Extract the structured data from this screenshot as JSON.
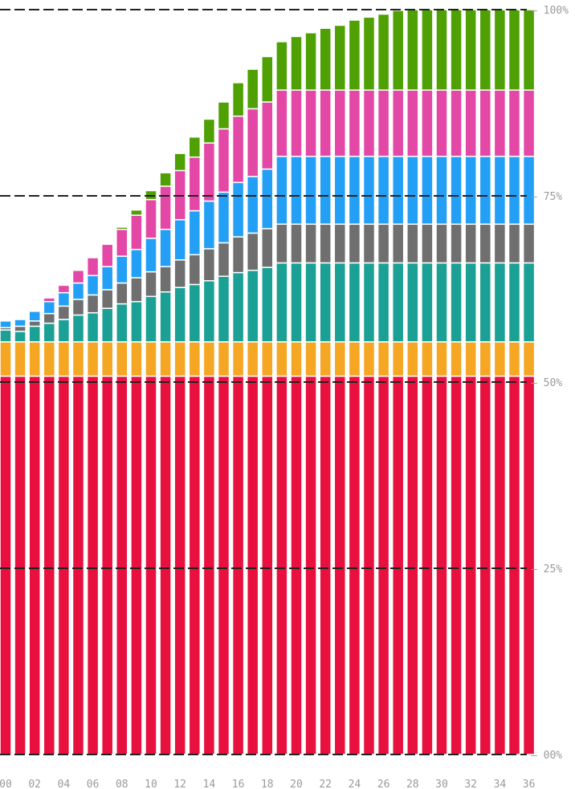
{
  "chart_data": {
    "type": "bar",
    "stacked": true,
    "title": "",
    "xlabel": "",
    "ylabel": "",
    "ylim": [
      0,
      100
    ],
    "grid": true,
    "legend": "none",
    "categories": [
      "00",
      "01",
      "02",
      "03",
      "04",
      "05",
      "06",
      "07",
      "08",
      "09",
      "10",
      "11",
      "12",
      "13",
      "14",
      "15",
      "16",
      "17",
      "18",
      "19",
      "20",
      "21",
      "22",
      "23",
      "24",
      "25",
      "26",
      "27",
      "28",
      "29",
      "30",
      "31",
      "32",
      "33",
      "34",
      "35",
      "36"
    ],
    "x_tick_labels": [
      "00",
      "02",
      "04",
      "06",
      "08",
      "10",
      "12",
      "14",
      "16",
      "18",
      "20",
      "22",
      "24",
      "26",
      "28",
      "30",
      "32",
      "34",
      "36"
    ],
    "y_tick_labels": [
      {
        "value": 100,
        "label": "— 100%"
      },
      {
        "value": 75,
        "label": "— 75%"
      },
      {
        "value": 50,
        "label": "— 50%"
      },
      {
        "value": 25,
        "label": "— 25%"
      },
      {
        "value": 0,
        "label": "— 00%"
      }
    ],
    "series": [
      {
        "color": "#e8103f",
        "values": [
          50.8,
          50.8,
          50.8,
          50.8,
          50.8,
          50.8,
          50.8,
          50.8,
          50.8,
          50.8,
          50.8,
          50.8,
          50.8,
          50.8,
          50.8,
          50.8,
          50.8,
          50.8,
          50.8,
          50.8,
          50.8,
          50.8,
          50.8,
          50.8,
          50.8,
          50.8,
          50.8,
          50.8,
          50.8,
          50.8,
          50.8,
          50.8,
          50.8,
          50.8,
          50.8,
          50.8,
          50.8
        ]
      },
      {
        "color": "#f5a623",
        "values": [
          4.6,
          4.6,
          4.6,
          4.6,
          4.6,
          4.6,
          4.6,
          4.6,
          4.6,
          4.6,
          4.6,
          4.6,
          4.6,
          4.6,
          4.6,
          4.6,
          4.6,
          4.6,
          4.6,
          4.6,
          4.6,
          4.6,
          4.6,
          4.6,
          4.6,
          4.6,
          4.6,
          4.6,
          4.6,
          4.6,
          4.6,
          4.6,
          4.6,
          4.6,
          4.6,
          4.6,
          4.6
        ]
      },
      {
        "color": "#1aa094",
        "values": [
          1.6,
          1.4,
          2.1,
          2.5,
          3.0,
          3.6,
          3.9,
          4.5,
          5.1,
          5.4,
          6.1,
          6.7,
          7.3,
          7.7,
          8.2,
          8.8,
          9.3,
          9.6,
          10.0,
          10.6,
          10.6,
          10.6,
          10.6,
          10.6,
          10.6,
          10.6,
          10.6,
          10.6,
          10.6,
          10.6,
          10.6,
          10.6,
          10.6,
          10.6,
          10.6,
          10.6,
          10.6
        ]
      },
      {
        "color": "#6f6f6f",
        "values": [
          0.3,
          0.7,
          0.7,
          1.3,
          1.8,
          2.1,
          2.4,
          2.5,
          2.8,
          3.2,
          3.3,
          3.4,
          3.7,
          4.0,
          4.3,
          4.5,
          4.8,
          5.0,
          5.2,
          5.2,
          5.2,
          5.2,
          5.2,
          5.2,
          5.2,
          5.2,
          5.2,
          5.2,
          5.2,
          5.2,
          5.2,
          5.2,
          5.2,
          5.2,
          5.2,
          5.2,
          5.2
        ]
      },
      {
        "color": "#23a0f5",
        "values": [
          0.9,
          0.9,
          1.3,
          1.6,
          1.8,
          2.2,
          2.6,
          3.1,
          3.6,
          3.8,
          4.5,
          5.0,
          5.4,
          5.9,
          6.4,
          6.8,
          7.3,
          7.6,
          8.0,
          9.1,
          9.1,
          9.1,
          9.1,
          9.1,
          9.1,
          9.1,
          9.1,
          9.1,
          9.1,
          9.1,
          9.1,
          9.1,
          9.1,
          9.1,
          9.1,
          9.1,
          9.1
        ]
      },
      {
        "color": "#e348a6",
        "values": [
          0,
          0,
          0,
          0.5,
          1.0,
          1.7,
          2.4,
          3.0,
          3.6,
          4.6,
          5.2,
          5.8,
          6.6,
          7.2,
          7.8,
          8.5,
          8.9,
          9.1,
          9.0,
          8.9,
          8.9,
          8.9,
          8.9,
          8.9,
          8.9,
          8.9,
          8.9,
          8.9,
          8.9,
          8.9,
          8.9,
          8.9,
          8.9,
          8.9,
          8.9,
          8.9,
          8.9
        ]
      },
      {
        "color": "#4ea003",
        "values": [
          0,
          0,
          0,
          0,
          0,
          0,
          0,
          0,
          0.3,
          0.7,
          1.2,
          1.8,
          2.3,
          2.7,
          3.2,
          3.6,
          4.5,
          5.3,
          6.1,
          6.5,
          7.2,
          7.7,
          8.3,
          8.7,
          9.4,
          9.8,
          10.2,
          10.7,
          10.8,
          10.8,
          10.8,
          10.8,
          10.8,
          10.8,
          10.8,
          10.8,
          10.8
        ]
      }
    ]
  }
}
